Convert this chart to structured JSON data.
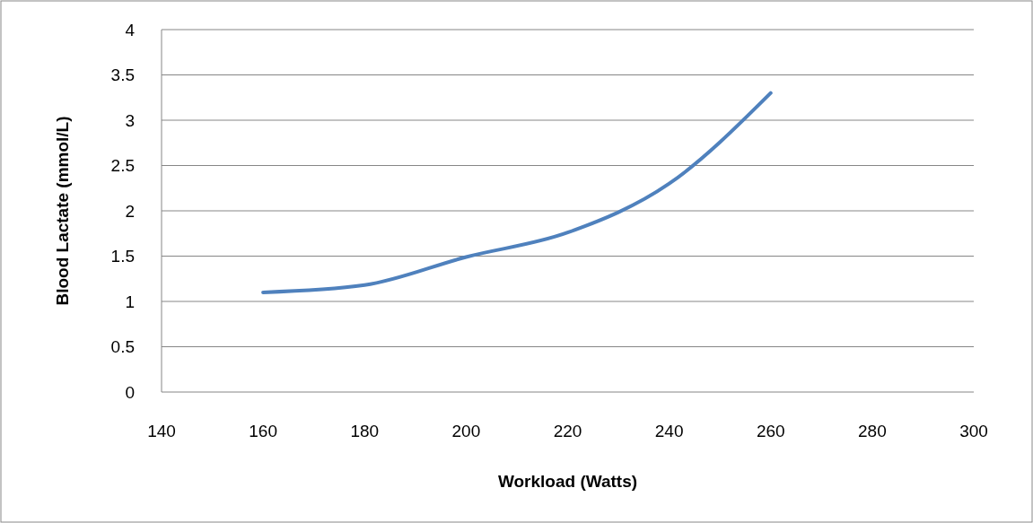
{
  "chart_data": {
    "type": "line",
    "xlabel": "Workload (Watts)",
    "ylabel": "Blood Lactate (mmol/L)",
    "x": [
      160,
      180,
      200,
      220,
      240,
      260
    ],
    "series": [
      {
        "color": "#4f81bd",
        "values": [
          1.1,
          1.18,
          1.49,
          1.76,
          2.3,
          3.3
        ]
      }
    ],
    "xlim": [
      140,
      300
    ],
    "xticks": [
      140,
      160,
      180,
      200,
      220,
      240,
      260,
      280,
      300
    ],
    "ylim": [
      0,
      4
    ],
    "yticks": [
      0,
      0.5,
      1,
      1.5,
      2,
      2.5,
      3,
      3.5,
      4
    ],
    "grid": "y",
    "marker": "none",
    "line_style": "solid"
  }
}
